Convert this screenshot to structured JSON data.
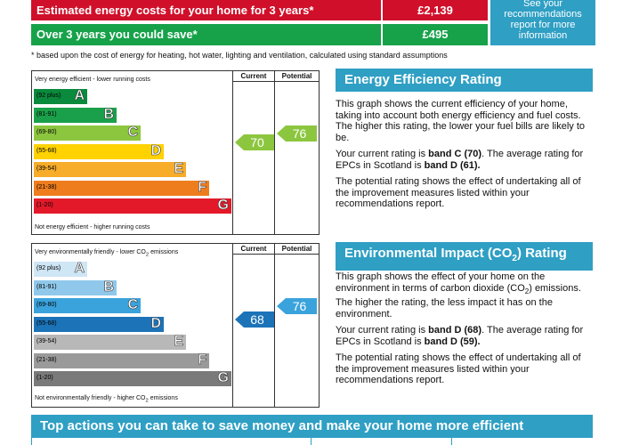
{
  "costs": {
    "row1": {
      "label": "Estimated energy costs for your home for 3 years*",
      "value": "£2,139"
    },
    "row2": {
      "label": "Over 3 years you could save*",
      "value": "£495"
    },
    "see_box": "See your recommendations report for more information",
    "footnote": "* based upon the cost of energy for heating, hot water, lighting and ventilation, calculated using standard assumptions"
  },
  "energy_chart": {
    "col_current": "Current",
    "col_potential": "Potential",
    "top_caption": "Very energy efficient - lower running costs",
    "bottom_caption": "Not energy efficient - higher running costs",
    "bands": [
      {
        "range": "(92 plus)",
        "letter": "A",
        "color": "#0a8a3c"
      },
      {
        "range": "(81-91)",
        "letter": "B",
        "color": "#1aa04a"
      },
      {
        "range": "(69-80)",
        "letter": "C",
        "color": "#8cc63f"
      },
      {
        "range": "(55-68)",
        "letter": "D",
        "color": "#ffd200"
      },
      {
        "range": "(39-54)",
        "letter": "E",
        "color": "#f7ac2a"
      },
      {
        "range": "(21-38)",
        "letter": "F",
        "color": "#ee7d1e"
      },
      {
        "range": "(1-20)",
        "letter": "G",
        "color": "#e3192a"
      }
    ],
    "current": "70",
    "potential": "76",
    "current_color": "#8cc63f",
    "potential_color": "#8cc63f"
  },
  "env_chart": {
    "col_current": "Current",
    "col_potential": "Potential",
    "top_caption_a": "Very environmentally friendly - lower CO",
    "top_caption_b": " emissions",
    "bottom_caption_a": "Not environmentally friendly - higher CO",
    "bottom_caption_b": " emissions",
    "sub2": "2",
    "bands": [
      {
        "range": "(92 plus)",
        "letter": "A",
        "color": "#cfe6f5"
      },
      {
        "range": "(81-91)",
        "letter": "B",
        "color": "#8fc8ea"
      },
      {
        "range": "(69-80)",
        "letter": "C",
        "color": "#3aa3dc"
      },
      {
        "range": "(55-68)",
        "letter": "D",
        "color": "#1c73b8"
      },
      {
        "range": "(39-54)",
        "letter": "E",
        "color": "#b8b8b8"
      },
      {
        "range": "(21-38)",
        "letter": "F",
        "color": "#9a9a9a"
      },
      {
        "range": "(1-20)",
        "letter": "G",
        "color": "#7a7a7a"
      }
    ],
    "current": "68",
    "potential": "76",
    "current_color": "#1c73b8",
    "potential_color": "#3aa3dc"
  },
  "eer": {
    "heading": "Energy Efficiency Rating",
    "p1": "This graph shows the current efficiency of your home, taking into account both energy efficiency and fuel costs. The higher this rating, the lower your fuel bills are likely to be.",
    "p2_a": "Your current rating is ",
    "p2_b": "band C (70)",
    "p2_c": ". The average rating for EPCs in Scotland is ",
    "p2_d": "band D (61).",
    "p3": "The potential rating shows the effect of undertaking all of the improvement measures listed within your recommendations report."
  },
  "eir": {
    "heading_a": "Environmental Impact (CO",
    "heading_sub": "2",
    "heading_b": ") Rating",
    "p1_a": "This graph shows the effect of your home on the environment in terms of carbon dioxide (CO",
    "p1_sub": "2",
    "p1_b": ") emissions. The higher the rating, the less impact it has on the environment.",
    "p2_a": "Your current rating is ",
    "p2_b": "band D (68)",
    "p2_c": ". The average rating for EPCs in Scotland is ",
    "p2_d": "band D (59).",
    "p3": "The potential rating shows the effect of undertaking all of the improvement measures listed within your recommendations report."
  },
  "bottom_heading": "Top actions you can take to save money and make your home more efficient"
}
